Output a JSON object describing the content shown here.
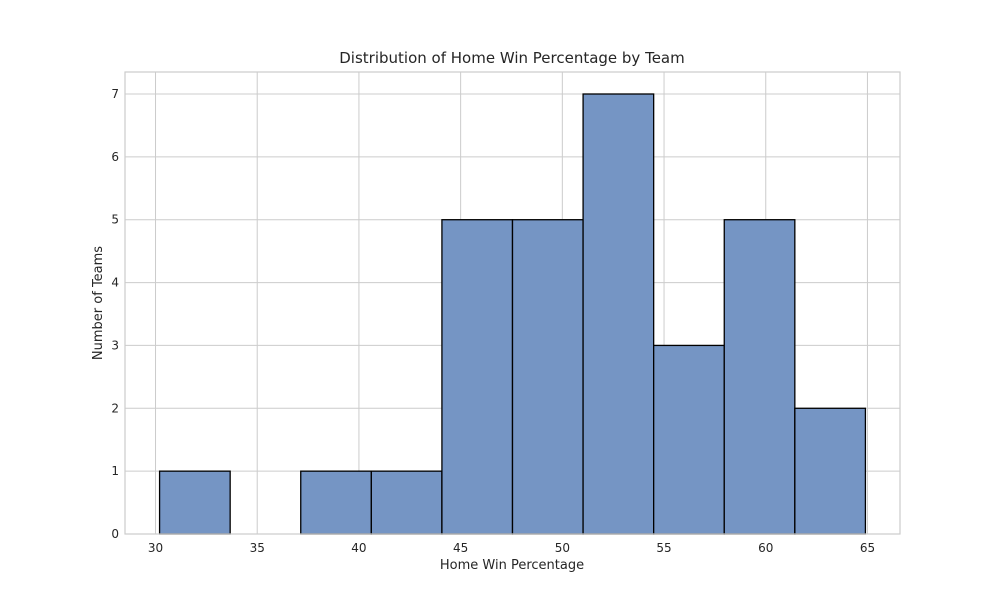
{
  "chart_data": {
    "type": "bar",
    "title": "Distribution of Home Win Percentage by Team",
    "xlabel": "Home Win Percentage",
    "ylabel": "Number of Teams",
    "bin_edges": [
      30.2,
      33.67,
      37.14,
      40.61,
      44.08,
      47.55,
      51.02,
      54.49,
      57.96,
      61.43,
      64.9
    ],
    "values": [
      1,
      0,
      1,
      1,
      5,
      5,
      7,
      3,
      5,
      2
    ],
    "xlim": [
      28.5,
      66.6
    ],
    "ylim": [
      0,
      7.35
    ],
    "xticks": [
      30,
      35,
      40,
      45,
      50,
      55,
      60,
      65
    ],
    "yticks": [
      0,
      1,
      2,
      3,
      4,
      5,
      6,
      7
    ],
    "bar_color": "#7595c4",
    "edge_color": "#000000",
    "grid": true
  }
}
